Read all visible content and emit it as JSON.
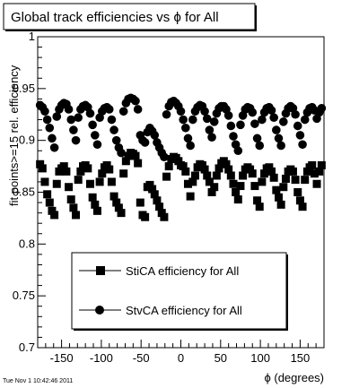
{
  "chart_data": {
    "type": "scatter",
    "title": "Global track efficiencies vs ϕ for All",
    "xlabel": "ϕ (degrees)",
    "ylabel": "fit points>=15 rel. efficiency",
    "xlim": [
      -180,
      180
    ],
    "ylim": [
      0.7,
      1.0
    ],
    "x_ticks": [
      -150,
      -100,
      -50,
      0,
      50,
      100,
      150
    ],
    "x_tick_labels": [
      "-150",
      "-100",
      "-50",
      "0",
      "50",
      "100",
      "150"
    ],
    "y_ticks": [
      0.7,
      0.75,
      0.8,
      0.85,
      0.9,
      0.95,
      1.0
    ],
    "y_tick_labels": [
      "0.7",
      "0.75",
      "0.8",
      "0.85",
      "0.9",
      "0.95",
      "1"
    ],
    "grid": false,
    "legend_position": "bottom-center",
    "timestamp": "Tue Nov  1 10:42:46 2011",
    "series": [
      {
        "name": "StiCA efficiency  for All",
        "marker": "square",
        "color": "#000000",
        "points": [
          [
            -177,
            0.877
          ],
          [
            -174,
            0.873
          ],
          [
            -171,
            0.86
          ],
          [
            -168,
            0.848
          ],
          [
            -165,
            0.84
          ],
          [
            -162,
            0.832
          ],
          [
            -159,
            0.828
          ],
          [
            -156,
            0.858
          ],
          [
            -153,
            0.87
          ],
          [
            -150,
            0.873
          ],
          [
            -147,
            0.875
          ],
          [
            -144,
            0.87
          ],
          [
            -141,
            0.855
          ],
          [
            -138,
            0.843
          ],
          [
            -135,
            0.835
          ],
          [
            -132,
            0.828
          ],
          [
            -129,
            0.862
          ],
          [
            -126,
            0.87
          ],
          [
            -123,
            0.875
          ],
          [
            -120,
            0.876
          ],
          [
            -117,
            0.873
          ],
          [
            -114,
            0.858
          ],
          [
            -111,
            0.845
          ],
          [
            -108,
            0.838
          ],
          [
            -105,
            0.832
          ],
          [
            -102,
            0.86
          ],
          [
            -99,
            0.868
          ],
          [
            -96,
            0.874
          ],
          [
            -93,
            0.876
          ],
          [
            -90,
            0.872
          ],
          [
            -87,
            0.86
          ],
          [
            -84,
            0.846
          ],
          [
            -81,
            0.84
          ],
          [
            -78,
            0.835
          ],
          [
            -75,
            0.83
          ],
          [
            -72,
            0.868
          ],
          [
            -69,
            0.88
          ],
          [
            -66,
            0.885
          ],
          [
            -63,
            0.888
          ],
          [
            -60,
            0.887
          ],
          [
            -57,
            0.885
          ],
          [
            -54,
            0.878
          ],
          [
            -51,
            0.84
          ],
          [
            -48,
            0.828
          ],
          [
            -45,
            0.826
          ],
          [
            -42,
            0.855
          ],
          [
            -39,
            0.857
          ],
          [
            -36,
            0.853
          ],
          [
            -33,
            0.848
          ],
          [
            -30,
            0.842
          ],
          [
            -27,
            0.836
          ],
          [
            -24,
            0.83
          ],
          [
            -21,
            0.826
          ],
          [
            -18,
            0.865
          ],
          [
            -15,
            0.875
          ],
          [
            -12,
            0.882
          ],
          [
            -9,
            0.884
          ],
          [
            -6,
            0.883
          ],
          [
            -3,
            0.88
          ],
          [
            0,
            0.876
          ],
          [
            3,
            0.875
          ],
          [
            6,
            0.87
          ],
          [
            9,
            0.858
          ],
          [
            12,
            0.846
          ],
          [
            15,
            0.86
          ],
          [
            18,
            0.866
          ],
          [
            21,
            0.874
          ],
          [
            24,
            0.877
          ],
          [
            27,
            0.876
          ],
          [
            30,
            0.872
          ],
          [
            33,
            0.866
          ],
          [
            36,
            0.86
          ],
          [
            39,
            0.85
          ],
          [
            42,
            0.855
          ],
          [
            45,
            0.866
          ],
          [
            48,
            0.873
          ],
          [
            51,
            0.878
          ],
          [
            54,
            0.88
          ],
          [
            57,
            0.877
          ],
          [
            60,
            0.872
          ],
          [
            63,
            0.866
          ],
          [
            66,
            0.858
          ],
          [
            69,
            0.85
          ],
          [
            72,
            0.843
          ],
          [
            75,
            0.856
          ],
          [
            78,
            0.866
          ],
          [
            81,
            0.872
          ],
          [
            84,
            0.874
          ],
          [
            87,
            0.872
          ],
          [
            90,
            0.868
          ],
          [
            93,
            0.856
          ],
          [
            96,
            0.842
          ],
          [
            99,
            0.836
          ],
          [
            102,
            0.86
          ],
          [
            105,
            0.868
          ],
          [
            108,
            0.873
          ],
          [
            111,
            0.874
          ],
          [
            114,
            0.87
          ],
          [
            117,
            0.864
          ],
          [
            120,
            0.852
          ],
          [
            123,
            0.845
          ],
          [
            126,
            0.838
          ],
          [
            129,
            0.855
          ],
          [
            132,
            0.863
          ],
          [
            135,
            0.87
          ],
          [
            138,
            0.872
          ],
          [
            141,
            0.87
          ],
          [
            144,
            0.862
          ],
          [
            147,
            0.85
          ],
          [
            150,
            0.842
          ],
          [
            153,
            0.836
          ],
          [
            156,
            0.862
          ],
          [
            159,
            0.87
          ],
          [
            162,
            0.874
          ],
          [
            165,
            0.876
          ],
          [
            168,
            0.868
          ],
          [
            171,
            0.858
          ],
          [
            174,
            0.87
          ],
          [
            177,
            0.876
          ]
        ]
      },
      {
        "name": "StvCA efficiency  for All",
        "marker": "circle",
        "color": "#000000",
        "points": [
          [
            -177,
            0.934
          ],
          [
            -174,
            0.932
          ],
          [
            -171,
            0.928
          ],
          [
            -168,
            0.92
          ],
          [
            -165,
            0.912
          ],
          [
            -162,
            0.902
          ],
          [
            -159,
            0.893
          ],
          [
            -156,
            0.923
          ],
          [
            -153,
            0.93
          ],
          [
            -150,
            0.934
          ],
          [
            -147,
            0.936
          ],
          [
            -144,
            0.935
          ],
          [
            -141,
            0.93
          ],
          [
            -138,
            0.92
          ],
          [
            -135,
            0.91
          ],
          [
            -132,
            0.9
          ],
          [
            -129,
            0.922
          ],
          [
            -126,
            0.93
          ],
          [
            -123,
            0.933
          ],
          [
            -120,
            0.934
          ],
          [
            -117,
            0.932
          ],
          [
            -114,
            0.926
          ],
          [
            -111,
            0.915
          ],
          [
            -108,
            0.905
          ],
          [
            -105,
            0.896
          ],
          [
            -102,
            0.922
          ],
          [
            -99,
            0.928
          ],
          [
            -96,
            0.931
          ],
          [
            -93,
            0.932
          ],
          [
            -90,
            0.93
          ],
          [
            -87,
            0.92
          ],
          [
            -84,
            0.91
          ],
          [
            -81,
            0.9
          ],
          [
            -78,
            0.893
          ],
          [
            -75,
            0.888
          ],
          [
            -72,
            0.928
          ],
          [
            -69,
            0.936
          ],
          [
            -66,
            0.94
          ],
          [
            -63,
            0.941
          ],
          [
            -60,
            0.94
          ],
          [
            -57,
            0.938
          ],
          [
            -54,
            0.93
          ],
          [
            -51,
            0.905
          ],
          [
            -48,
            0.9
          ],
          [
            -45,
            0.898
          ],
          [
            -42,
            0.908
          ],
          [
            -39,
            0.912
          ],
          [
            -36,
            0.909
          ],
          [
            -33,
            0.905
          ],
          [
            -30,
            0.898
          ],
          [
            -27,
            0.893
          ],
          [
            -24,
            0.888
          ],
          [
            -21,
            0.884
          ],
          [
            -18,
            0.925
          ],
          [
            -15,
            0.933
          ],
          [
            -12,
            0.937
          ],
          [
            -9,
            0.938
          ],
          [
            -6,
            0.936
          ],
          [
            -3,
            0.933
          ],
          [
            0,
            0.928
          ],
          [
            3,
            0.92
          ],
          [
            6,
            0.912
          ],
          [
            9,
            0.902
          ],
          [
            12,
            0.895
          ],
          [
            15,
            0.92
          ],
          [
            18,
            0.928
          ],
          [
            21,
            0.932
          ],
          [
            24,
            0.934
          ],
          [
            27,
            0.933
          ],
          [
            30,
            0.928
          ],
          [
            33,
            0.921
          ],
          [
            36,
            0.91
          ],
          [
            39,
            0.903
          ],
          [
            42,
            0.918
          ],
          [
            45,
            0.926
          ],
          [
            48,
            0.931
          ],
          [
            51,
            0.933
          ],
          [
            54,
            0.933
          ],
          [
            57,
            0.93
          ],
          [
            60,
            0.924
          ],
          [
            63,
            0.914
          ],
          [
            66,
            0.904
          ],
          [
            69,
            0.896
          ],
          [
            72,
            0.89
          ],
          [
            75,
            0.915
          ],
          [
            78,
            0.924
          ],
          [
            81,
            0.93
          ],
          [
            84,
            0.932
          ],
          [
            87,
            0.931
          ],
          [
            90,
            0.927
          ],
          [
            93,
            0.916
          ],
          [
            96,
            0.902
          ],
          [
            99,
            0.895
          ],
          [
            102,
            0.92
          ],
          [
            105,
            0.927
          ],
          [
            108,
            0.931
          ],
          [
            111,
            0.932
          ],
          [
            114,
            0.929
          ],
          [
            117,
            0.922
          ],
          [
            120,
            0.91
          ],
          [
            123,
            0.902
          ],
          [
            126,
            0.895
          ],
          [
            129,
            0.918
          ],
          [
            132,
            0.926
          ],
          [
            135,
            0.931
          ],
          [
            138,
            0.933
          ],
          [
            141,
            0.931
          ],
          [
            144,
            0.925
          ],
          [
            147,
            0.914
          ],
          [
            150,
            0.905
          ],
          [
            153,
            0.896
          ],
          [
            156,
            0.92
          ],
          [
            159,
            0.927
          ],
          [
            162,
            0.931
          ],
          [
            165,
            0.932
          ],
          [
            168,
            0.929
          ],
          [
            171,
            0.921
          ],
          [
            174,
            0.927
          ],
          [
            177,
            0.931
          ]
        ]
      }
    ]
  }
}
